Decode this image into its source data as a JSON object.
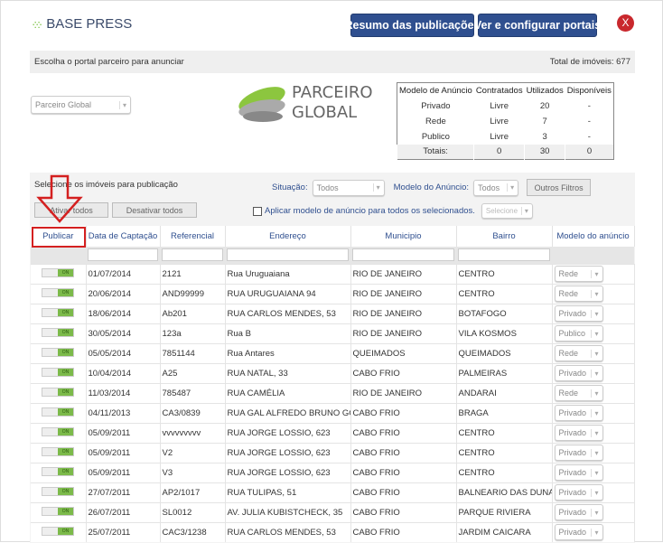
{
  "header": {
    "app_name": "BASE PRESS",
    "summary_button": "Resumo das publicações",
    "portals_button": "Ver e configurar portais",
    "close": "X"
  },
  "bar": {
    "prompt": "Escolha o portal parceiro para anunciar",
    "total": "Total de imóveis: 677"
  },
  "portal_select": {
    "value": "Parceiro Global"
  },
  "partner_logo": {
    "line1": "PARCEIRO",
    "line2": "GLOBAL"
  },
  "summary": {
    "headers": [
      "Modelo de Anúncio",
      "Contratados",
      "Utilizados",
      "Disponíveis"
    ],
    "rows": [
      [
        "Privado",
        "Livre",
        "20",
        "-"
      ],
      [
        "Rede",
        "Livre",
        "7",
        "-"
      ],
      [
        "Publico",
        "Livre",
        "3",
        "-"
      ]
    ],
    "totals": [
      "Totais:",
      "0",
      "30",
      "0"
    ]
  },
  "filters": {
    "select_label": "Selecione os imóveis para publicação",
    "situacao_label": "Situação:",
    "situacao_value": "Todos",
    "modelo_label": "Modelo do Anúncio:",
    "modelo_value": "Todos",
    "other_filters": "Outros Filtros",
    "activate_all": "Ativar todos",
    "deactivate_all": "Desativar todos",
    "apply_label": "Aplicar modelo de anúncio para todos os selecionados.",
    "apply_select": "Selecione"
  },
  "table": {
    "headers": [
      "Publicar",
      "Data de Captação",
      "Referencial",
      "Endereço",
      "Municipio",
      "Bairro",
      "Modelo do anúncio"
    ],
    "toggle_label": "ON",
    "rows": [
      [
        "01/07/2014",
        "2121",
        "Rua Uruguaiana",
        "RIO DE JANEIRO",
        "CENTRO",
        "Rede"
      ],
      [
        "20/06/2014",
        "AND99999",
        "RUA URUGUAIANA 94",
        "RIO DE JANEIRO",
        "CENTRO",
        "Rede"
      ],
      [
        "18/06/2014",
        "Ab201",
        "RUA CARLOS MENDES, 53",
        "RIO DE JANEIRO",
        "BOTAFOGO",
        "Privado"
      ],
      [
        "30/05/2014",
        "123a",
        "Rua B",
        "RIO DE JANEIRO",
        "VILA KOSMOS",
        "Publico"
      ],
      [
        "05/05/2014",
        "7851144",
        "Rua Antares",
        "QUEIMADOS",
        "QUEIMADOS",
        "Rede"
      ],
      [
        "10/04/2014",
        "A25",
        "RUA NATAL, 33",
        "CABO FRIO",
        "PALMEIRAS",
        "Privado"
      ],
      [
        "11/03/2014",
        "785487",
        "RUA CAMÉLIA",
        "RIO DE JANEIRO",
        "ANDARAI",
        "Rede"
      ],
      [
        "04/11/2013",
        "CA3/0839",
        "RUA GAL ALFREDO BRUNO GOMES",
        "CABO FRIO",
        "BRAGA",
        "Privado"
      ],
      [
        "05/09/2011",
        "vvvvvvvvv",
        "RUA JORGE LOSSIO, 623",
        "CABO FRIO",
        "CENTRO",
        "Privado"
      ],
      [
        "05/09/2011",
        "V2",
        "RUA JORGE LOSSIO, 623",
        "CABO FRIO",
        "CENTRO",
        "Privado"
      ],
      [
        "05/09/2011",
        "V3",
        "RUA JORGE LOSSIO, 623",
        "CABO FRIO",
        "CENTRO",
        "Privado"
      ],
      [
        "27/07/2011",
        "AP2/1017",
        "RUA TULIPAS, 51",
        "CABO FRIO",
        "BALNEARIO DAS DUNAS",
        "Privado"
      ],
      [
        "26/07/2011",
        "SL0012",
        "AV. JULIA KUBISTCHECK, 35",
        "CABO FRIO",
        "PARQUE RIVIERA",
        "Privado"
      ],
      [
        "25/07/2011",
        "CAC3/1238",
        "RUA CARLOS MENDES, 53",
        "CABO FRIO",
        "JARDIM CAICARA",
        "Privado"
      ]
    ]
  },
  "colors": {
    "brand_blue": "#2f4f8f",
    "toggle_green": "#7cba4a",
    "annotation_red": "#d42020",
    "close_red": "#c9282d"
  }
}
